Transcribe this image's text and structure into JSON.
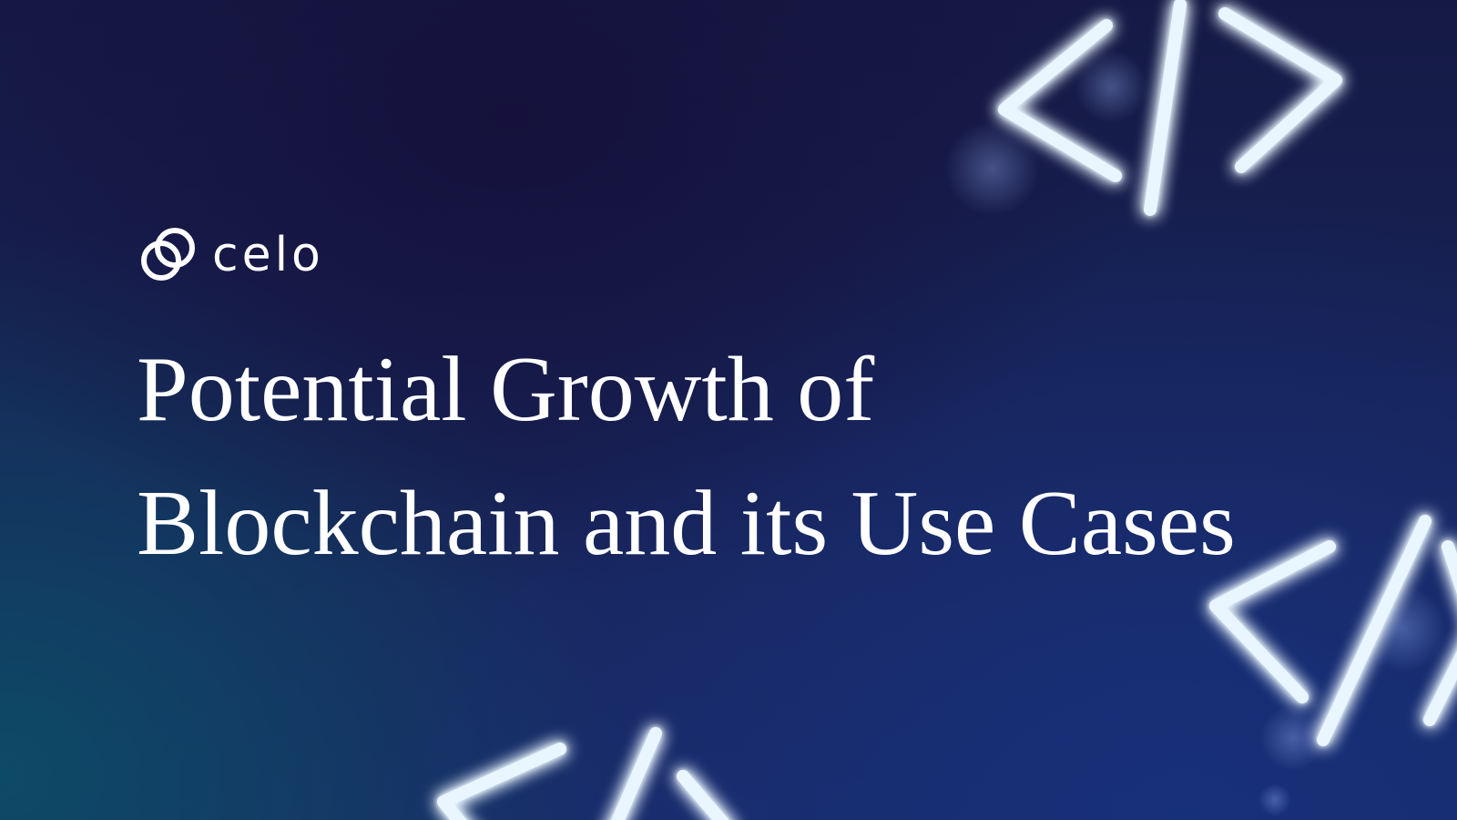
{
  "brand": {
    "name": "celo",
    "icon": "celo-logo-icon"
  },
  "title": {
    "line1": "Potential Growth of",
    "line2": "Blockchain and its Use Cases"
  },
  "decorations": {
    "icon": "code-brackets-neon-icon",
    "glow_color": "#6fb2ff",
    "stroke_color": "#eaf6ff"
  },
  "colors": {
    "background_dark": "#151a45",
    "background_blue": "#1a2a66",
    "text": "#ffffff"
  }
}
